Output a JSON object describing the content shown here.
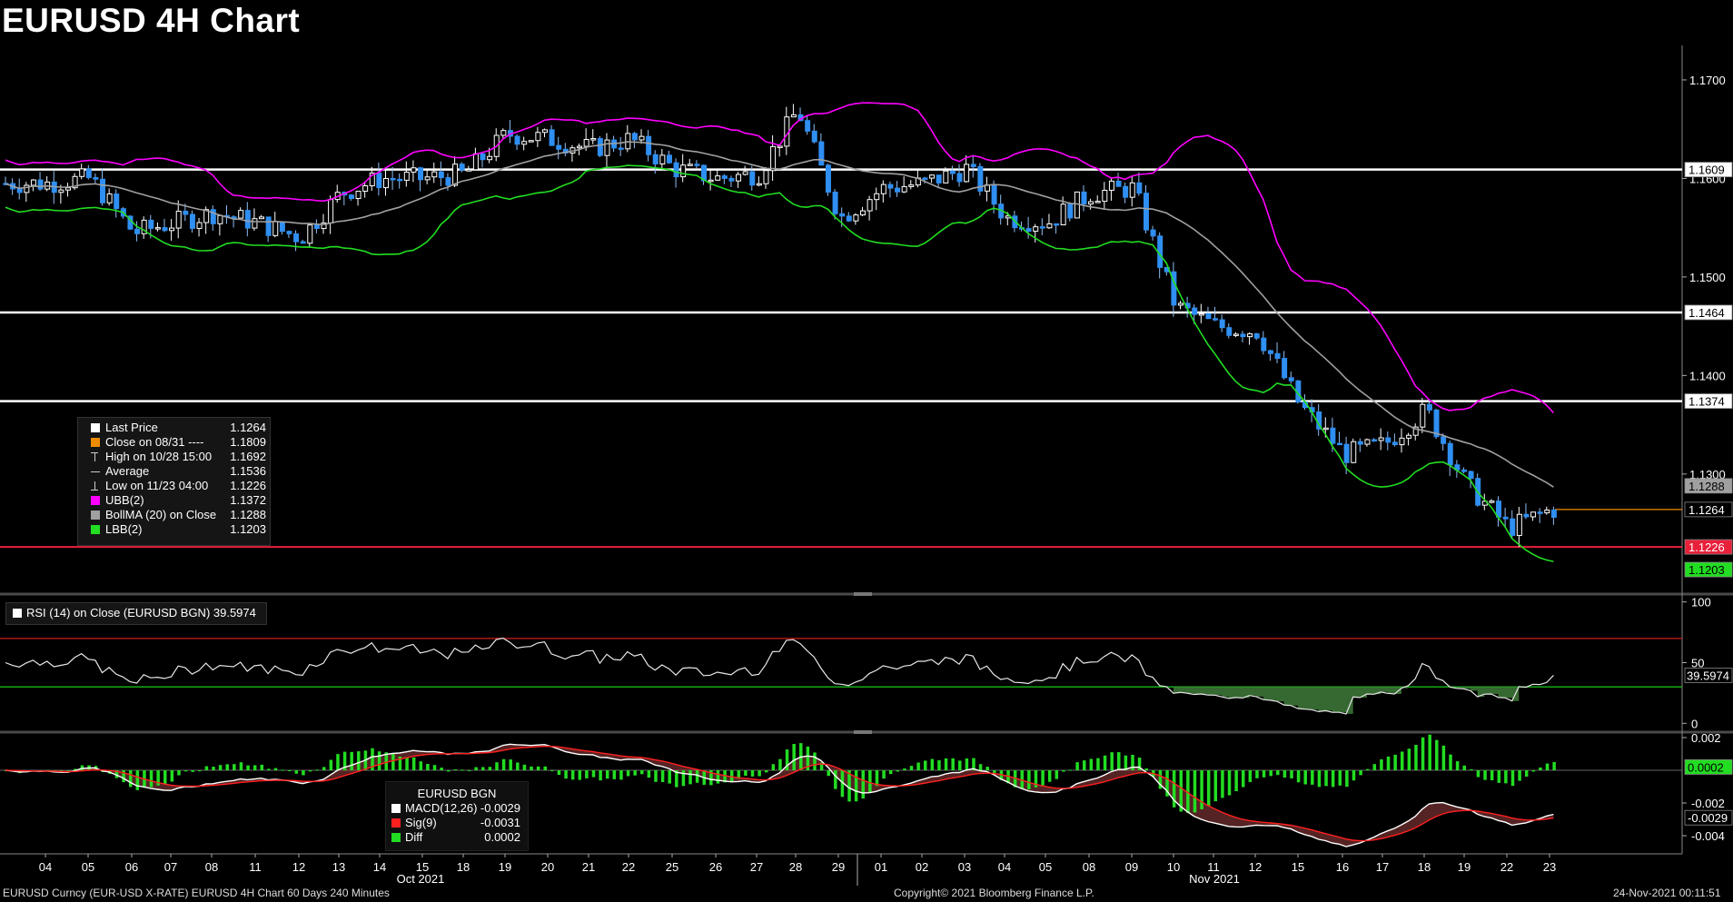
{
  "title": "EURUSD 4H Chart",
  "colors": {
    "up": "#ffffff",
    "down": "#2f8ff2",
    "ubb": "#ff00ff",
    "lbb": "#22dd22",
    "bollma": "#a0a0a0",
    "hline": "#ffffff",
    "low_line": "#e8203a",
    "last_line": "#f08c00"
  },
  "price_axis": {
    "ticks": [
      "1.1700",
      "1.1600",
      "1.1500",
      "1.1400",
      "1.1300"
    ],
    "tick_values": [
      1.17,
      1.16,
      1.15,
      1.14,
      1.13
    ],
    "ylim": [
      1.118,
      1.1735
    ],
    "tags": [
      {
        "text": "1.1609",
        "value": 1.1609,
        "bg": "#ffffff",
        "fg": "#000000"
      },
      {
        "text": "1.1464",
        "value": 1.1464,
        "bg": "#ffffff",
        "fg": "#000000"
      },
      {
        "text": "1.1374",
        "value": 1.1374,
        "bg": "#ffffff",
        "fg": "#000000"
      },
      {
        "text": "1.1288",
        "value": 1.1288,
        "bg": "#a0a0a0",
        "fg": "#000000"
      },
      {
        "text": "1.1264",
        "value": 1.1264,
        "bg": "#000000",
        "fg": "#ffffff"
      },
      {
        "text": "1.1226",
        "value": 1.1226,
        "bg": "#e8203a",
        "fg": "#ffffff"
      },
      {
        "text": "1.1203",
        "value": 1.1203,
        "bg": "#22dd22",
        "fg": "#000000"
      }
    ]
  },
  "levels": [
    1.1609,
    1.1464,
    1.1374
  ],
  "price_legend": [
    {
      "label": "Last Price",
      "value": "1.1264",
      "swatch": "#ffffff",
      "icon": "square"
    },
    {
      "label": "Close on 08/31 ----",
      "value": "1.1809",
      "swatch": "#f08c00",
      "icon": "square"
    },
    {
      "label": "High on 10/28 15:00",
      "value": "1.1692",
      "swatch": "",
      "icon": "high-marker"
    },
    {
      "label": "Average",
      "value": "1.1536",
      "swatch": "",
      "icon": "average-marker"
    },
    {
      "label": "Low on 11/23 04:00",
      "value": "1.1226",
      "swatch": "",
      "icon": "low-marker"
    },
    {
      "label": "UBB(2)",
      "value": "1.1372",
      "swatch": "#ff00ff",
      "icon": "square"
    },
    {
      "label": "BollMA (20)  on Close",
      "value": "1.1288",
      "swatch": "#a0a0a0",
      "icon": "square"
    },
    {
      "label": "LBB(2)",
      "value": "1.1203",
      "swatch": "#22dd22",
      "icon": "square"
    }
  ],
  "rsi": {
    "legend": "RSI (14)  on Close (EURUSD BGN) 39.5974",
    "tag": "39.5974",
    "ticks": [
      "100",
      "50",
      "0"
    ],
    "tick_values": [
      100,
      50,
      0
    ],
    "overbought": 70,
    "oversold": 30,
    "last": 39.5974
  },
  "macd": {
    "legend_title": "EURUSD BGN",
    "legend": [
      {
        "label": "MACD(12,26)",
        "value": "-0.0029",
        "swatch": "#ffffff"
      },
      {
        "label": "Sig(9)",
        "value": "-0.0031",
        "swatch": "#ff2020"
      },
      {
        "label": "Diff",
        "value": "0.0002",
        "swatch": "#22dd22"
      }
    ],
    "ticks": [
      "0.002",
      "-0.002",
      "-0.004"
    ],
    "tick_values": [
      0.002,
      -0.002,
      -0.004
    ],
    "tags": [
      {
        "text": "0.0002",
        "value": 0.0002,
        "bg": "#22dd22",
        "fg": "#000000"
      },
      {
        "text": "-0.0029",
        "value": -0.0029,
        "bg": "#000000",
        "fg": "#ffffff"
      }
    ]
  },
  "date_axis": {
    "days": [
      "04",
      "05",
      "06",
      "07",
      "08",
      "11",
      "12",
      "13",
      "14",
      "15",
      "18",
      "19",
      "20",
      "21",
      "22",
      "25",
      "26",
      "27",
      "28",
      "29",
      "01",
      "02",
      "03",
      "04",
      "05",
      "08",
      "09",
      "10",
      "11",
      "12",
      "15",
      "16",
      "17",
      "18",
      "19",
      "22",
      "23"
    ],
    "months": [
      "Oct 2021",
      "Nov 2021"
    ]
  },
  "footer": {
    "left": "EURUSD Curncy (EUR-USD X-RATE) EURUSD 4H Chart 60 Days 240 Minutes",
    "center": "Copyright© 2021 Bloomberg Finance L.P.",
    "right": "24-Nov-2021 00:11:51"
  },
  "chart_data": {
    "type": "candlestick",
    "title": "EURUSD 4H Chart",
    "price_anchors": [
      [
        "10/04",
        1.1595
      ],
      [
        "10/05",
        1.16
      ],
      [
        "10/06",
        1.1545
      ],
      [
        "10/07",
        1.1555
      ],
      [
        "10/08",
        1.1565
      ],
      [
        "10/11",
        1.1555
      ],
      [
        "10/12",
        1.154
      ],
      [
        "10/13",
        1.1585
      ],
      [
        "10/14",
        1.16
      ],
      [
        "10/15",
        1.16
      ],
      [
        "10/18",
        1.1605
      ],
      [
        "10/19",
        1.1645
      ],
      [
        "10/20",
        1.164
      ],
      [
        "10/21",
        1.163
      ],
      [
        "10/22",
        1.164
      ],
      [
        "10/25",
        1.161
      ],
      [
        "10/26",
        1.16
      ],
      [
        "10/27",
        1.1605
      ],
      [
        "10/28",
        1.167
      ],
      [
        "10/29",
        1.156
      ],
      [
        "11/01",
        1.159
      ],
      [
        "11/02",
        1.1595
      ],
      [
        "11/03",
        1.161
      ],
      [
        "11/04",
        1.156
      ],
      [
        "11/05",
        1.1555
      ],
      [
        "11/08",
        1.1585
      ],
      [
        "11/09",
        1.159
      ],
      [
        "11/10",
        1.147
      ],
      [
        "11/11",
        1.145
      ],
      [
        "11/12",
        1.1445
      ],
      [
        "11/15",
        1.137
      ],
      [
        "11/16",
        1.132
      ],
      [
        "11/17",
        1.133
      ],
      [
        "11/18",
        1.1365
      ],
      [
        "11/19",
        1.129
      ],
      [
        "11/22",
        1.1245
      ],
      [
        "11/23",
        1.1264
      ]
    ],
    "bollinger_last": {
      "upper": 1.1372,
      "middle": 1.1288,
      "lower": 1.1203
    },
    "high": {
      "date": "10/28 15:00",
      "value": 1.1692
    },
    "low": {
      "date": "11/23 04:00",
      "value": 1.1226
    },
    "average": 1.1536,
    "last": 1.1264,
    "horizontal_levels": [
      1.1609,
      1.1464,
      1.1374
    ],
    "rsi_last": 39.5974,
    "macd_last": {
      "macd": -0.0029,
      "signal": -0.0031,
      "diff": 0.0002
    }
  }
}
